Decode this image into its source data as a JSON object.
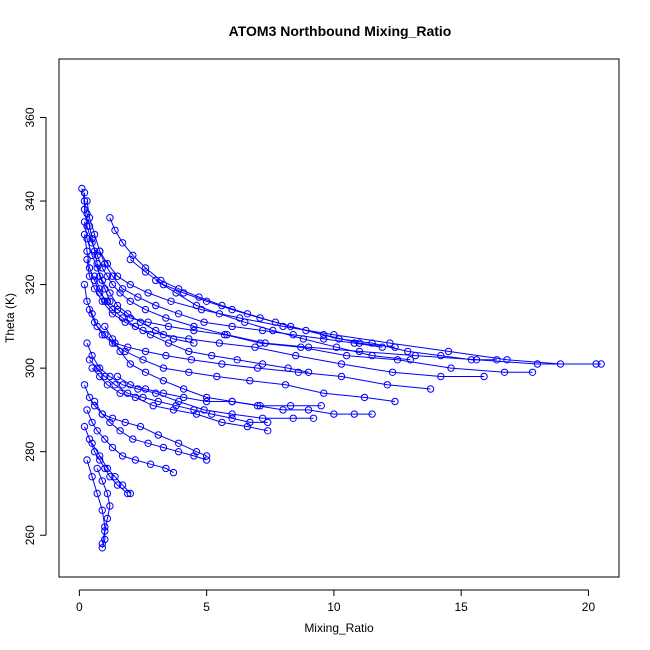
{
  "chart_data": {
    "type": "scatter",
    "title": "ATOM3 Northbound Mixing_Ratio",
    "xlabel": "Mixing_Ratio",
    "ylabel": "Theta (K)",
    "xlim": [
      -0.8,
      21.2
    ],
    "ylim": [
      250,
      374
    ],
    "xticks": [
      0,
      5,
      10,
      15,
      20
    ],
    "yticks": [
      260,
      280,
      300,
      320,
      340,
      360
    ],
    "grid": false,
    "legend": "none",
    "color": "#0000ff",
    "marker": "open-circle",
    "connected": true,
    "series": [
      {
        "x": [
          0.2,
          0.2,
          0.3,
          0.5,
          0.7,
          0.9,
          1.1,
          1.3,
          1.6,
          2.0,
          2.6,
          3.4,
          4.5,
          5.8,
          7.3,
          9.0,
          11.0,
          13.2,
          15.6,
          18.0,
          20.3
        ],
        "y": [
          342,
          338,
          334,
          330,
          327,
          324,
          322,
          320,
          318,
          316,
          314,
          312,
          310,
          308,
          306,
          305,
          304,
          303,
          302,
          301,
          301
        ]
      },
      {
        "x": [
          0.3,
          0.4,
          0.6,
          0.8,
          1.1,
          1.5,
          2.0,
          2.7,
          3.6,
          4.8,
          6.3,
          8.0,
          10.0,
          12.2,
          14.5,
          16.8,
          18.9,
          20.5
        ],
        "y": [
          340,
          336,
          332,
          328,
          325,
          322,
          320,
          318,
          316,
          314,
          312,
          310,
          308,
          306,
          304,
          302,
          301,
          301
        ]
      },
      {
        "x": [
          0.2,
          0.3,
          0.4,
          0.6,
          0.8,
          1.1,
          1.5,
          2.0,
          2.7,
          3.5,
          4.5,
          5.7,
          7.1,
          8.7,
          10.5,
          12.5,
          14.6,
          16.7,
          17.8
        ],
        "y": [
          332,
          328,
          324,
          321,
          318,
          316,
          314,
          312,
          311,
          310,
          309,
          308,
          306,
          305,
          303,
          302,
          300,
          299,
          299
        ]
      },
      {
        "x": [
          0.3,
          0.4,
          0.6,
          0.9,
          1.3,
          1.8,
          2.5,
          3.3,
          4.3,
          5.5,
          6.9,
          8.5,
          10.3,
          12.3,
          14.2,
          15.9
        ],
        "y": [
          326,
          322,
          319,
          316,
          313,
          311,
          309,
          308,
          307,
          306,
          305,
          303,
          301,
          299,
          298,
          298
        ]
      },
      {
        "x": [
          0.2,
          0.3,
          0.5,
          0.7,
          1.0,
          1.4,
          1.9,
          2.6,
          3.4,
          4.4,
          5.6,
          7.0,
          8.6,
          10.3,
          12.1,
          13.8
        ],
        "y": [
          320,
          316,
          313,
          310,
          308,
          306,
          305,
          304,
          303,
          302,
          301,
          300,
          299,
          298,
          296,
          295
        ]
      },
      {
        "x": [
          0.4,
          0.6,
          0.9,
          1.3,
          1.8,
          2.5,
          3.3,
          4.3,
          5.4,
          6.7,
          8.1,
          9.6,
          11.2,
          12.4
        ],
        "y": [
          314,
          311,
          308,
          306,
          304,
          302,
          300,
          299,
          298,
          297,
          296,
          294,
          293,
          292
        ],
        "_note": ""
      },
      {
        "x": [
          0.3,
          0.5,
          0.8,
          1.2,
          1.7,
          2.3,
          3.0,
          3.9,
          4.9,
          6.0,
          7.2,
          8.4,
          9.2
        ],
        "y": [
          306,
          303,
          300,
          298,
          296,
          295,
          294,
          292,
          290,
          289,
          288,
          288,
          288
        ]
      },
      {
        "x": [
          0.5,
          0.8,
          1.1,
          1.6,
          2.2,
          2.9,
          3.7,
          4.6,
          5.6,
          6.6,
          7.4
        ],
        "y": [
          300,
          298,
          296,
          294,
          293,
          291,
          290,
          289,
          287,
          286,
          285
        ]
      },
      {
        "x": [
          0.2,
          0.4,
          0.6,
          0.9,
          1.3,
          1.8,
          2.4,
          3.1,
          3.9,
          4.6,
          5.0
        ],
        "y": [
          296,
          293,
          291,
          289,
          288,
          287,
          286,
          284,
          282,
          280,
          279
        ]
      },
      {
        "x": [
          0.3,
          0.5,
          0.7,
          1.0,
          1.3,
          1.7,
          2.2,
          2.8,
          3.4,
          3.7
        ],
        "y": [
          290,
          287,
          285,
          283,
          281,
          279,
          278,
          277,
          276,
          275
        ]
      },
      {
        "x": [
          0.2,
          0.4,
          0.6,
          0.8,
          1.0,
          1.2,
          1.5,
          1.9
        ],
        "y": [
          286,
          283,
          280,
          278,
          276,
          274,
          272,
          270
        ]
      },
      {
        "x": [
          0.3,
          0.5,
          0.7,
          0.9,
          1.0,
          1.0,
          0.9
        ],
        "y": [
          278,
          274,
          270,
          266,
          262,
          259,
          257
        ]
      },
      {
        "x": [
          1.2,
          1.4,
          1.7,
          2.1,
          2.6,
          3.2,
          3.9,
          4.7,
          5.6,
          6.6,
          7.7,
          8.9,
          10.2,
          11.5,
          12.9,
          14.2,
          15.4,
          16.4
        ],
        "y": [
          336,
          333,
          330,
          327,
          324,
          321,
          319,
          317,
          315,
          313,
          311,
          309,
          307,
          306,
          304,
          303,
          302,
          302
        ]
      },
      {
        "x": [
          0.8,
          1.0,
          1.3,
          1.7,
          2.3,
          3.0,
          3.9,
          4.9,
          6.0,
          7.2,
          8.4,
          9.6,
          10.8,
          11.9
        ],
        "y": [
          328,
          325,
          322,
          319,
          317,
          315,
          313,
          311,
          310,
          309,
          308,
          307,
          306,
          305
        ]
      },
      {
        "x": [
          0.6,
          0.8,
          1.0,
          1.3,
          1.7,
          2.2,
          2.8,
          3.5,
          4.3,
          5.2,
          6.2,
          7.2,
          8.2,
          9.0
        ],
        "y": [
          322,
          319,
          316,
          314,
          312,
          310,
          308,
          306,
          304,
          303,
          302,
          301,
          300,
          299
        ]
      },
      {
        "x": [
          1.0,
          1.3,
          1.6,
          2.0,
          2.6,
          3.3,
          4.1,
          5.0,
          6.0,
          7.0,
          8.0,
          9.0,
          10.0,
          10.8,
          11.5
        ],
        "y": [
          310,
          307,
          304,
          301,
          299,
          297,
          295,
          293,
          292,
          291,
          290,
          290,
          289,
          289,
          289
        ]
      },
      {
        "x": [
          0.4,
          0.7,
          1.0,
          1.4,
          1.9,
          2.5,
          3.1,
          3.8,
          4.5,
          5.2,
          6.0,
          6.7,
          7.4
        ],
        "y": [
          302,
          300,
          298,
          296,
          294,
          293,
          292,
          291,
          290,
          289,
          288,
          287,
          287
        ]
      },
      {
        "x": [
          0.6,
          0.9,
          1.2,
          1.6,
          2.1,
          2.7,
          3.3,
          3.9,
          4.5,
          5.0
        ],
        "y": [
          292,
          289,
          287,
          285,
          283,
          282,
          281,
          280,
          279,
          278
        ]
      },
      {
        "x": [
          0.5,
          0.8,
          1.1,
          1.4,
          1.7,
          2.0
        ],
        "y": [
          282,
          279,
          276,
          274,
          272,
          270
        ]
      },
      {
        "x": [
          0.7,
          0.9,
          1.1,
          1.2,
          1.1,
          1.0,
          0.9
        ],
        "y": [
          276,
          273,
          270,
          267,
          264,
          261,
          258
        ]
      },
      {
        "x": [
          0.1,
          0.2,
          0.3,
          0.4,
          0.5,
          0.6,
          0.7,
          0.8,
          1.0,
          1.2
        ],
        "y": [
          343,
          340,
          337,
          334,
          331,
          328,
          325,
          322,
          319,
          316
        ]
      },
      {
        "x": [
          0.2,
          0.3,
          0.5,
          0.7,
          0.9,
          1.2,
          1.5,
          1.9,
          2.4,
          3.0,
          3.7,
          4.5
        ],
        "y": [
          335,
          331,
          327,
          324,
          321,
          318,
          315,
          313,
          311,
          309,
          307,
          306
        ]
      },
      {
        "x": [
          2.0,
          2.6,
          3.3,
          4.1,
          5.0,
          6.0,
          7.1,
          8.3,
          9.6,
          11.0,
          12.4
        ],
        "y": [
          326,
          323,
          320,
          318,
          316,
          314,
          312,
          310,
          308,
          306,
          305
        ]
      },
      {
        "x": [
          3.0,
          3.8,
          4.6,
          5.5,
          6.5,
          7.6,
          8.8,
          10.1,
          11.5,
          13.0
        ],
        "y": [
          321,
          318,
          315,
          313,
          311,
          309,
          307,
          305,
          303,
          302
        ]
      },
      {
        "x": [
          1.5,
          2.0,
          2.6,
          3.3,
          4.1,
          5.0,
          6.0,
          7.1,
          8.3,
          9.5
        ],
        "y": [
          298,
          296,
          295,
          294,
          293,
          292,
          292,
          291,
          291,
          291
        ]
      }
    ]
  }
}
